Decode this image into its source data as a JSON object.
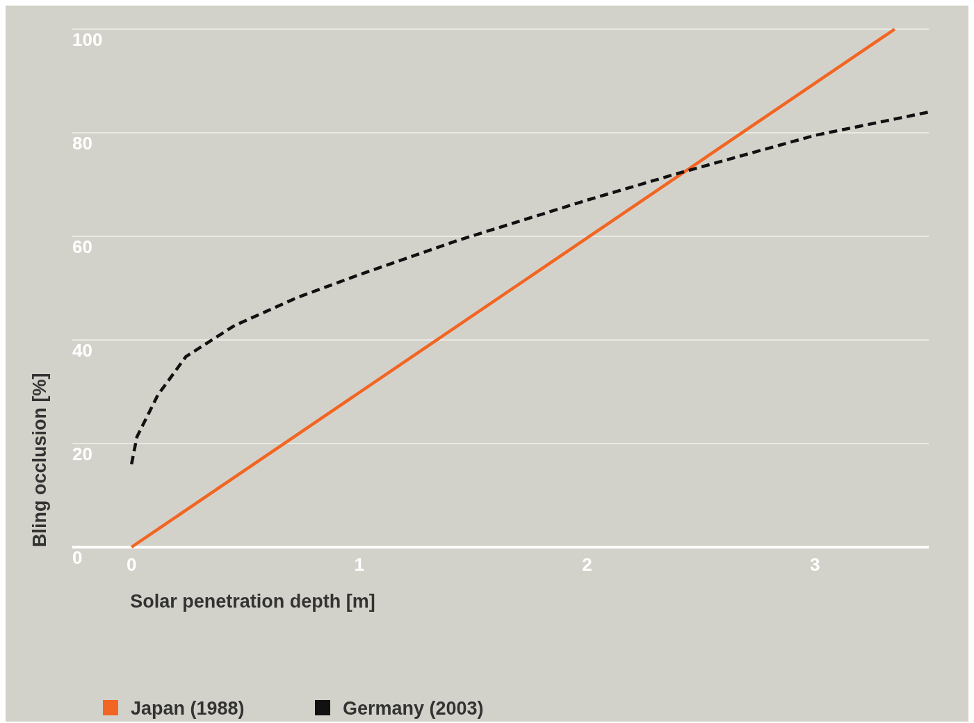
{
  "chart_data": {
    "type": "line",
    "xlabel": "Solar penetration depth [m]",
    "ylabel": "Bling occlusion [%]",
    "xlim": [
      -0.26,
      3.5
    ],
    "xticks": [
      0,
      1,
      2,
      3
    ],
    "ylim": [
      0,
      100
    ],
    "yticks": [
      0,
      20,
      40,
      60,
      80,
      100
    ],
    "grid": "y",
    "legend": "bottom",
    "marker": "none",
    "series": [
      {
        "name": "Japan (1988)",
        "color": "#f26522",
        "line_style": "solid",
        "x": [
          0,
          3.35
        ],
        "values": [
          0,
          100
        ]
      },
      {
        "name": "Germany (2003)",
        "color": "#111111",
        "line_style": "dashed",
        "x": [
          0,
          0.012,
          0.024,
          0.116,
          0.239,
          0.453,
          0.728,
          1.0,
          1.431,
          2.0,
          2.41,
          3.0,
          3.5
        ],
        "values": [
          16,
          18.7,
          21.3,
          29.4,
          36.8,
          42.8,
          48.2,
          52.6,
          59.2,
          67,
          72.3,
          79.5,
          84
        ]
      }
    ]
  }
}
